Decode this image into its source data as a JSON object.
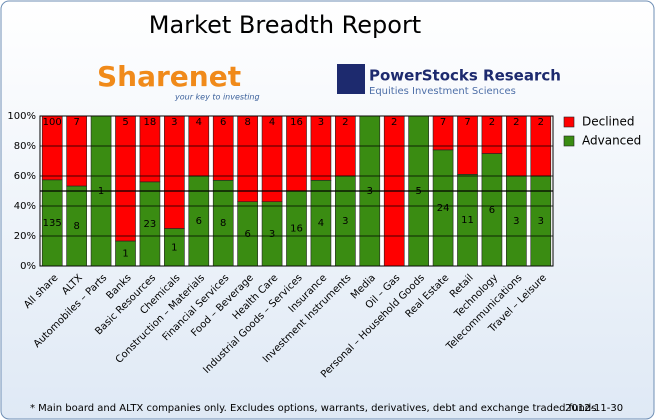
{
  "chart_data": {
    "type": "bar",
    "stacking": "percent",
    "title": "Market Breadth Report",
    "logos": {
      "left": {
        "name": "Sharenet",
        "tagline": "your key to investing"
      },
      "right": {
        "name": "PowerStocks  Research",
        "tagline": "Equities Investment Sciences"
      }
    },
    "categories": [
      "All share",
      "ALTX",
      "Automobiles – Parts",
      "Banks",
      "Basic Resources",
      "Chemicals",
      "Construction – Materials",
      "Financial Services",
      "Food – Beverage",
      "Health Care",
      "Industrial Goods – Services",
      "Insurance",
      "Investment Instruments",
      "Media",
      "Oil – Gas",
      "Personal – Household Goods",
      "Real Estate",
      "Retail",
      "Technology",
      "Telecommunications",
      "Travel – Leisure"
    ],
    "series": [
      {
        "name": "Advanced",
        "color": "#3a8c12",
        "values": [
          135,
          8,
          1,
          1,
          23,
          1,
          6,
          8,
          6,
          3,
          16,
          4,
          3,
          3,
          0,
          5,
          24,
          11,
          6,
          3,
          3
        ]
      },
      {
        "name": "Declined",
        "color": "#ff0000",
        "values": [
          100,
          7,
          0,
          5,
          18,
          3,
          4,
          6,
          8,
          4,
          16,
          3,
          2,
          0,
          2,
          0,
          7,
          7,
          2,
          2,
          2
        ]
      }
    ],
    "ylim": [
      0,
      100
    ],
    "yticks": [
      {
        "value": 0,
        "label": "0%"
      },
      {
        "value": 20,
        "label": "20%"
      },
      {
        "value": 40,
        "label": "40%"
      },
      {
        "value": 60,
        "label": "60%"
      },
      {
        "value": 80,
        "label": "80%"
      },
      {
        "value": 100,
        "label": "100%"
      }
    ],
    "reference_line": 50,
    "grid": true,
    "legend": "right",
    "footnote": "* Main board and ALTX companies only. Excludes options, warrants, derivatives, debt and exchange traded funds",
    "date": "2012-11-30"
  }
}
